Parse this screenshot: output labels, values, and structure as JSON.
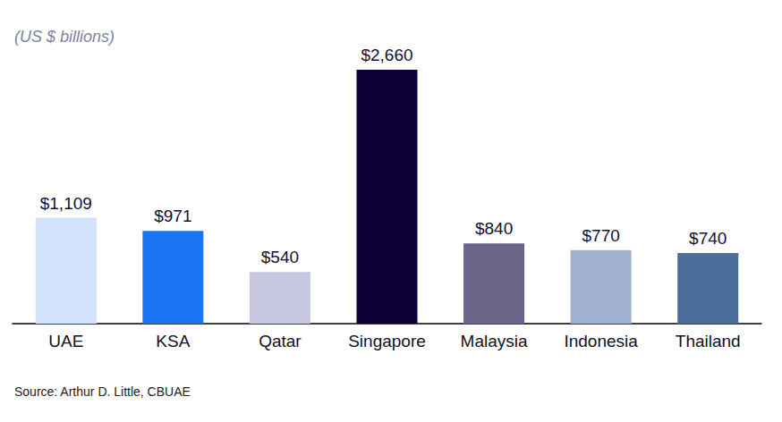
{
  "chart_data": {
    "type": "bar",
    "subtitle": "(US $ billions)",
    "source": "Source: Arthur D. Little, CBUAE",
    "categories": [
      "UAE",
      "KSA",
      "Qatar",
      "Singapore",
      "Malaysia",
      "Indonesia",
      "Thailand"
    ],
    "values": [
      1109,
      971,
      540,
      2660,
      840,
      770,
      740
    ],
    "value_labels": [
      "$1,109",
      "$971",
      "$540",
      "$2,660",
      "$840",
      "$770",
      "$740"
    ],
    "colors": [
      "#d3e2fb",
      "#1a75f5",
      "#c6c6df",
      "#0d0038",
      "#6d6589",
      "#9fb1cf",
      "#4b6d9a"
    ],
    "ylim": [
      0,
      2660
    ],
    "grid": false,
    "data_labels": true,
    "tick_labels": "x"
  }
}
